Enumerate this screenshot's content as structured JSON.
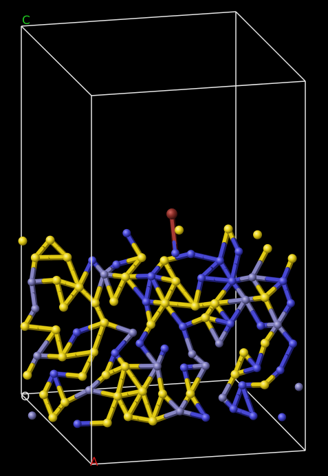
{
  "viewer": {
    "background": "#000000",
    "cell_edge_color": "#e8e8e8"
  },
  "axes": {
    "c": {
      "label": "C",
      "color": "#1fc21f"
    },
    "o": {
      "label": "O",
      "color": "#e8e8e8"
    },
    "a": {
      "label": "A",
      "color": "#d01818"
    }
  },
  "structure": {
    "elements": [
      {
        "name": "yellow-atom",
        "color": "#e8d21a",
        "shade": "#8a7a05"
      },
      {
        "name": "blue-atom",
        "color": "#4a4ad8",
        "shade": "#1a1a70"
      },
      {
        "name": "slate-atom",
        "color": "#7a78b8",
        "shade": "#35345a"
      },
      {
        "name": "adsorbate-atom",
        "color": "#8a2e28",
        "shade": "#3c100c"
      }
    ]
  }
}
